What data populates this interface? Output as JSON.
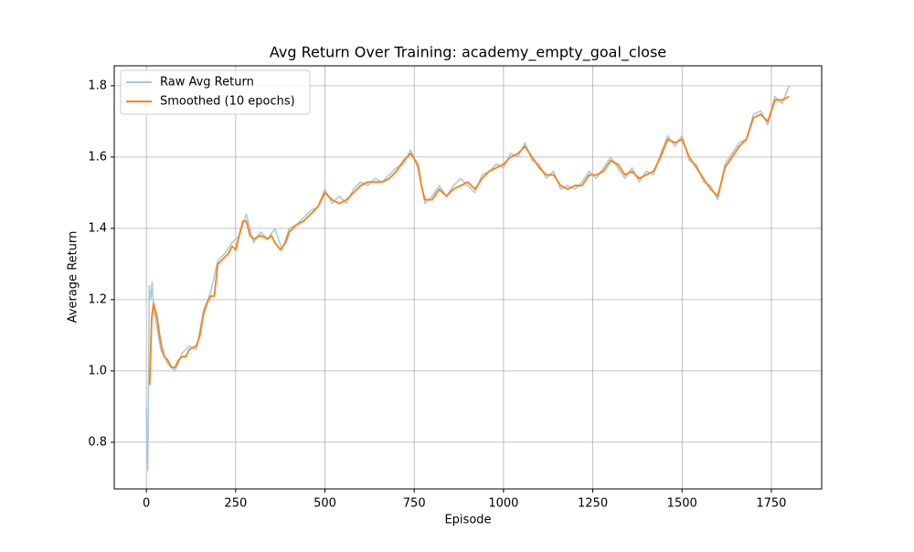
{
  "chart_data": {
    "type": "line",
    "title": "Avg Return Over Training: academy_empty_goal_close",
    "xlabel": "Episode",
    "ylabel": "Average Return",
    "xlim": [
      -90,
      1891
    ],
    "ylim": [
      0.669,
      1.856
    ],
    "xticks": [
      0,
      250,
      500,
      750,
      1000,
      1250,
      1500,
      1750
    ],
    "yticks": [
      0.8,
      {
        "value": 1.0,
        "label": "1.0"
      },
      1.2,
      1.4,
      1.6,
      1.8
    ],
    "grid": true,
    "legend": "upper left",
    "series": [
      {
        "name": "Raw Avg Return",
        "color": "#a6c8e0",
        "x": [
          0,
          4,
          8,
          12,
          16,
          20,
          40,
          60,
          80,
          100,
          120,
          140,
          160,
          180,
          200,
          220,
          240,
          260,
          280,
          300,
          320,
          340,
          360,
          380,
          400,
          420,
          440,
          460,
          480,
          500,
          520,
          540,
          560,
          580,
          600,
          620,
          640,
          660,
          680,
          700,
          720,
          740,
          760,
          780,
          800,
          820,
          840,
          860,
          880,
          900,
          920,
          940,
          960,
          980,
          1000,
          1020,
          1040,
          1060,
          1080,
          1100,
          1120,
          1140,
          1160,
          1180,
          1200,
          1220,
          1240,
          1260,
          1280,
          1300,
          1320,
          1340,
          1360,
          1380,
          1400,
          1420,
          1440,
          1460,
          1480,
          1500,
          1520,
          1540,
          1560,
          1580,
          1600,
          1620,
          1640,
          1660,
          1680,
          1700,
          1720,
          1740,
          1760,
          1780,
          1800
        ],
        "values": [
          0.9,
          0.72,
          1.24,
          1.2,
          1.25,
          1.18,
          1.06,
          1.02,
          1.0,
          1.05,
          1.07,
          1.06,
          1.17,
          1.22,
          1.31,
          1.33,
          1.36,
          1.38,
          1.44,
          1.36,
          1.39,
          1.37,
          1.4,
          1.34,
          1.4,
          1.41,
          1.43,
          1.45,
          1.46,
          1.51,
          1.47,
          1.49,
          1.47,
          1.51,
          1.53,
          1.52,
          1.54,
          1.53,
          1.55,
          1.57,
          1.58,
          1.62,
          1.57,
          1.47,
          1.49,
          1.52,
          1.49,
          1.52,
          1.54,
          1.52,
          1.5,
          1.55,
          1.56,
          1.58,
          1.57,
          1.61,
          1.6,
          1.64,
          1.59,
          1.58,
          1.54,
          1.56,
          1.51,
          1.52,
          1.51,
          1.53,
          1.56,
          1.54,
          1.57,
          1.6,
          1.57,
          1.54,
          1.57,
          1.53,
          1.56,
          1.55,
          1.61,
          1.66,
          1.63,
          1.66,
          1.59,
          1.58,
          1.53,
          1.52,
          1.48,
          1.58,
          1.61,
          1.64,
          1.65,
          1.72,
          1.73,
          1.69,
          1.77,
          1.75,
          1.8
        ]
      },
      {
        "name": "Smoothed (10 epochs)",
        "color": "#ff7f0e",
        "x": [
          9,
          15,
          20,
          30,
          40,
          50,
          60,
          70,
          80,
          90,
          100,
          110,
          120,
          140,
          150,
          160,
          170,
          180,
          190,
          200,
          210,
          230,
          240,
          250,
          260,
          270,
          280,
          290,
          300,
          320,
          340,
          350,
          360,
          375,
          390,
          400,
          420,
          440,
          460,
          480,
          500,
          520,
          540,
          560,
          580,
          600,
          620,
          640,
          660,
          680,
          700,
          720,
          740,
          760,
          770,
          780,
          800,
          820,
          840,
          860,
          880,
          900,
          920,
          940,
          960,
          980,
          1000,
          1020,
          1040,
          1060,
          1080,
          1100,
          1120,
          1140,
          1160,
          1180,
          1200,
          1220,
          1240,
          1260,
          1280,
          1300,
          1320,
          1340,
          1360,
          1380,
          1400,
          1420,
          1440,
          1460,
          1480,
          1500,
          1520,
          1540,
          1560,
          1580,
          1600,
          1620,
          1640,
          1660,
          1680,
          1700,
          1720,
          1740,
          1760,
          1780,
          1800
        ],
        "values": [
          0.96,
          1.15,
          1.19,
          1.15,
          1.08,
          1.04,
          1.03,
          1.01,
          1.01,
          1.03,
          1.04,
          1.04,
          1.06,
          1.07,
          1.1,
          1.16,
          1.19,
          1.21,
          1.21,
          1.3,
          1.31,
          1.33,
          1.35,
          1.34,
          1.38,
          1.42,
          1.42,
          1.38,
          1.37,
          1.38,
          1.37,
          1.38,
          1.36,
          1.34,
          1.36,
          1.39,
          1.41,
          1.42,
          1.44,
          1.46,
          1.5,
          1.48,
          1.47,
          1.48,
          1.5,
          1.52,
          1.53,
          1.53,
          1.53,
          1.54,
          1.56,
          1.59,
          1.61,
          1.58,
          1.52,
          1.48,
          1.48,
          1.51,
          1.49,
          1.51,
          1.52,
          1.53,
          1.51,
          1.54,
          1.56,
          1.57,
          1.58,
          1.6,
          1.61,
          1.63,
          1.6,
          1.57,
          1.55,
          1.55,
          1.52,
          1.51,
          1.52,
          1.52,
          1.55,
          1.55,
          1.56,
          1.59,
          1.58,
          1.55,
          1.56,
          1.54,
          1.55,
          1.56,
          1.6,
          1.65,
          1.64,
          1.65,
          1.6,
          1.57,
          1.54,
          1.51,
          1.49,
          1.57,
          1.6,
          1.63,
          1.65,
          1.71,
          1.72,
          1.7,
          1.76,
          1.76,
          1.77
        ]
      }
    ]
  }
}
